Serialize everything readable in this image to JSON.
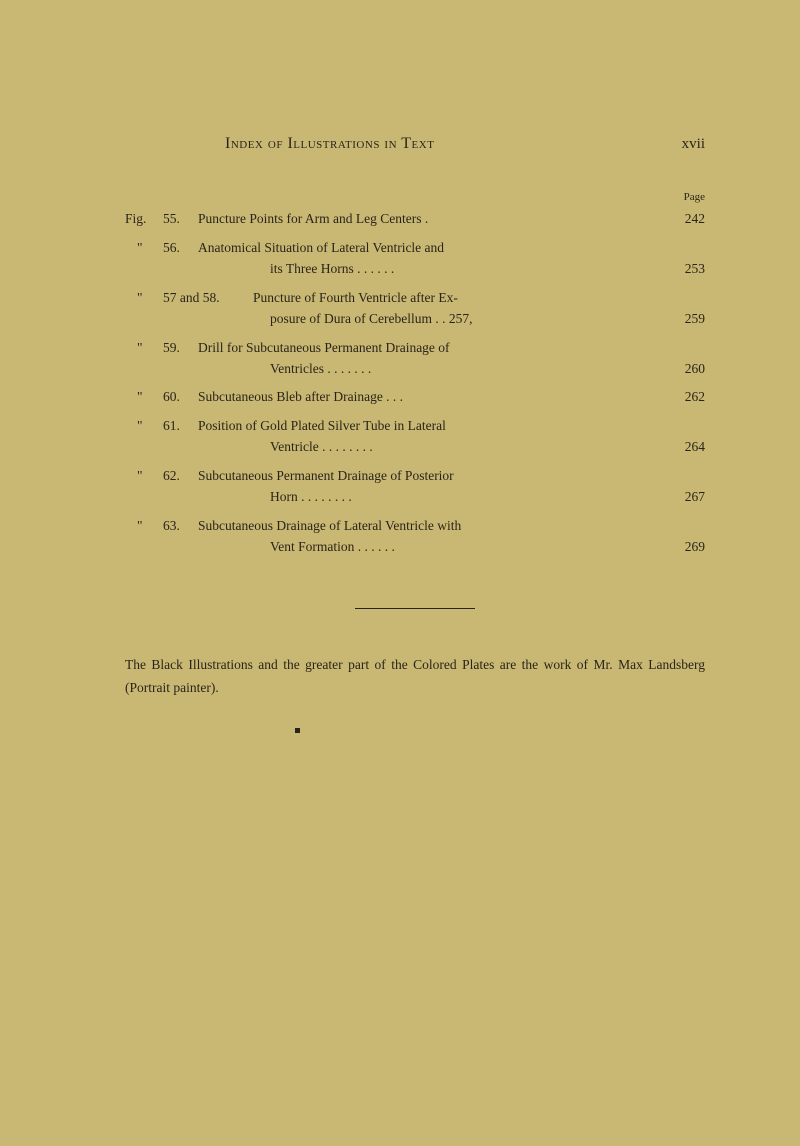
{
  "header": {
    "title": "Index of Illustrations in Text",
    "roman_page": "xvii"
  },
  "page_label": "Page",
  "entries": [
    {
      "fig": "Fig.",
      "num": "55.",
      "text": "Puncture Points for Arm and Leg Centers    .",
      "page": "242"
    },
    {
      "fig": "\"",
      "num": "56.",
      "text": "Anatomical Situation of Lateral Ventricle and",
      "indent_text": "its Three Horns    .    .    .    .    .    .",
      "page": "253"
    },
    {
      "fig": "\"",
      "num": "57 and 58.",
      "text_wide": "Puncture of Fourth Ventricle after Ex-",
      "indent_text": "posure of Dura of Cerebellum    .    .  257,",
      "page": "259"
    },
    {
      "fig": "\"",
      "num": "59.",
      "text": "Drill for Subcutaneous Permanent Drainage of",
      "indent_text": "Ventricles    .    .    .    .    .    .    .",
      "page": "260"
    },
    {
      "fig": "\"",
      "num": "60.",
      "text": "Subcutaneous Bleb after Drainage    .    .    .",
      "page": "262"
    },
    {
      "fig": "\"",
      "num": "61.",
      "text": "Position of Gold Plated Silver Tube in Lateral",
      "indent_text": "Ventricle .    .    .    .    .    .    .    .",
      "page": "264"
    },
    {
      "fig": "\"",
      "num": "62.",
      "text": "Subcutaneous Permanent Drainage of Posterior",
      "indent_text": "Horn    .    .    .    .    .    .    .    .",
      "page": "267"
    },
    {
      "fig": "\"",
      "num": "63.",
      "text": "Subcutaneous Drainage of Lateral Ventricle with",
      "indent_text": "Vent Formation    .    .    .    .    .    .",
      "page": "269"
    }
  ],
  "footnote": "The Black Illustrations and the greater part of the Colored Plates are the work of Mr. Max Landsberg (Portrait painter)."
}
